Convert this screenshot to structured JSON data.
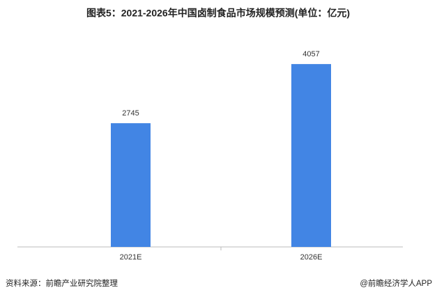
{
  "chart_data": {
    "type": "bar",
    "title": "图表5：2021-2026年中国卤制食品市场规模预测(单位：亿元)",
    "categories": [
      "2021E",
      "2026E"
    ],
    "values": [
      2745,
      4057
    ],
    "color": "#4285e4",
    "ylim": [
      0,
      4500
    ],
    "source": "资料来源：前瞻产业研究院整理",
    "credit": "@前瞻经济学人APP"
  }
}
